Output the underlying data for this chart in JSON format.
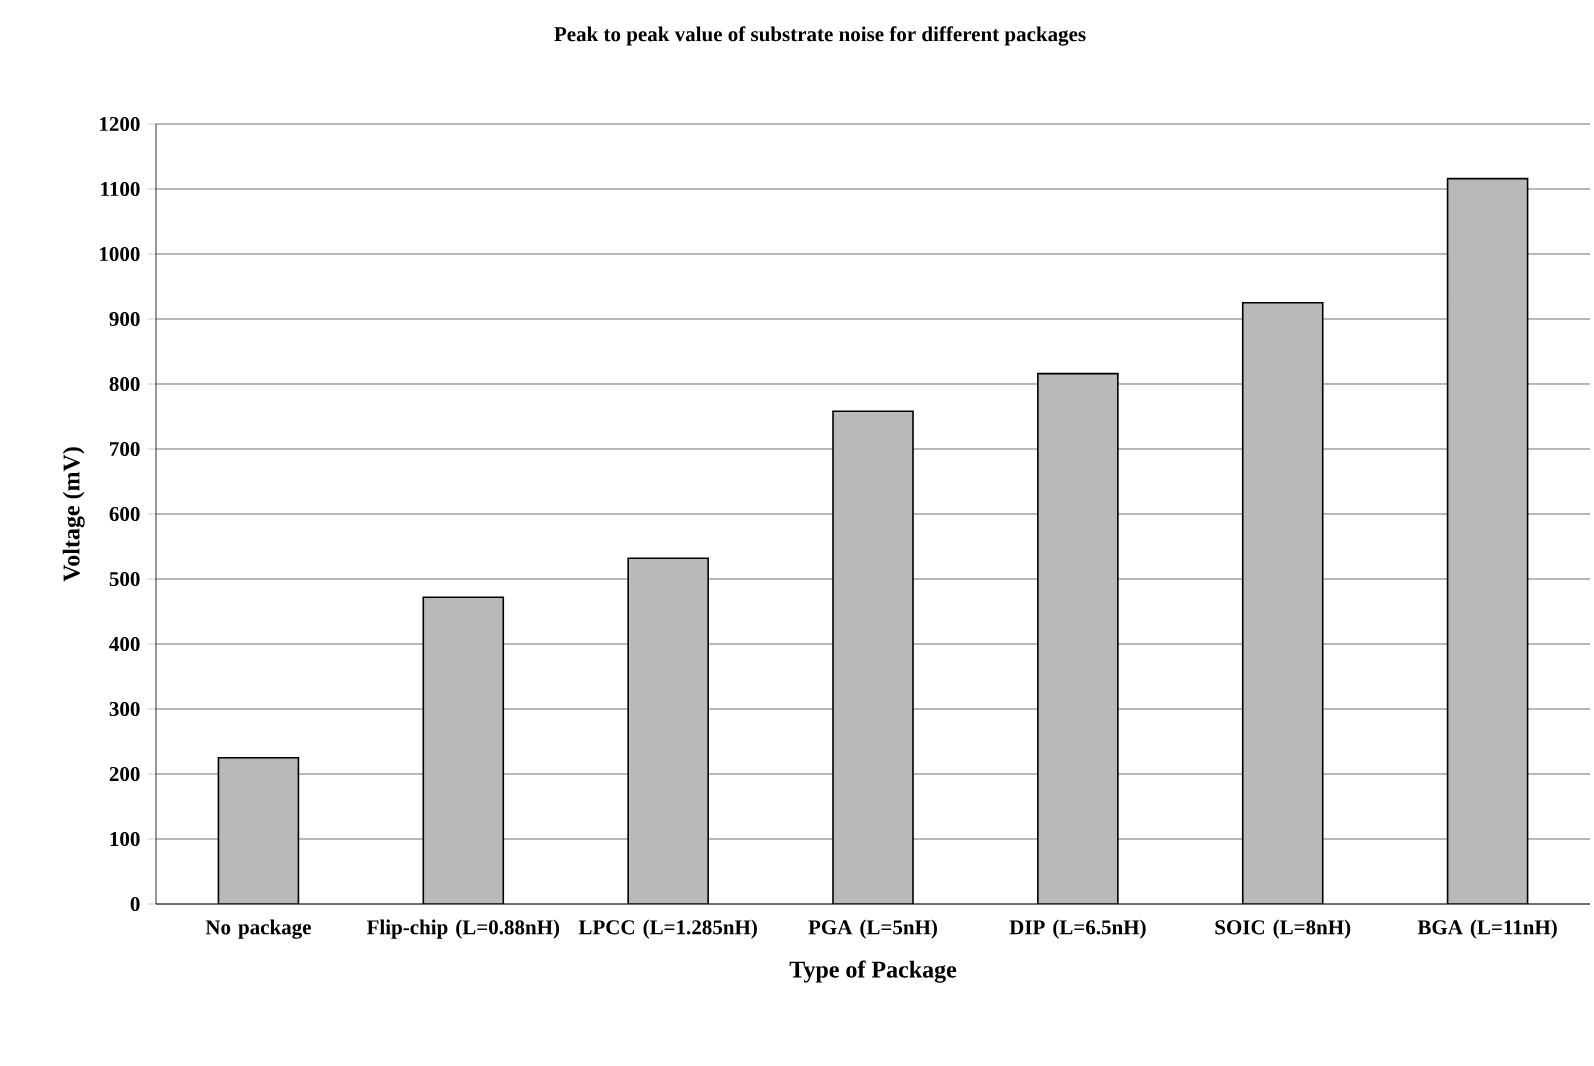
{
  "chart_data": {
    "type": "bar",
    "title": "Peak to peak value of substrate noise for different packages",
    "xlabel": "Type of Package",
    "ylabel": "Voltage (mV)",
    "categories": [
      "No package",
      "Flip-chip (L=0.88nH)",
      "LPCC (L=1.285nH)",
      "PGA (L=5nH)",
      "DIP (L=6.5nH)",
      "SOIC (L=8nH)",
      "BGA (L=11nH)"
    ],
    "values": [
      225,
      472,
      532,
      758,
      816,
      925,
      1116
    ],
    "color": "#b9b9b9",
    "ylim": [
      0,
      1200
    ],
    "yticks": [
      0,
      100,
      200,
      300,
      400,
      500,
      600,
      700,
      800,
      900,
      1000,
      1100,
      1200
    ],
    "grid": "y"
  }
}
